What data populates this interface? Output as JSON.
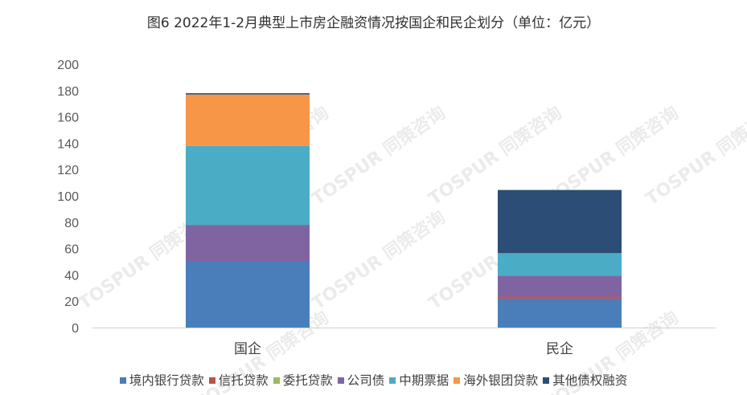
{
  "chart_data": {
    "type": "bar",
    "stacked": true,
    "title": "图6 2022年1-2月典型上市房企融资情况按国企和民企划分（单位：亿元）",
    "categories": [
      "国企",
      "民企"
    ],
    "ylim": [
      0,
      200
    ],
    "yticks": [
      0,
      20,
      40,
      60,
      80,
      100,
      120,
      140,
      160,
      180,
      200
    ],
    "grid": false,
    "legend_position": "bottom",
    "series": [
      {
        "name": "境内银行贷款",
        "color": "#4a7ebb",
        "values": [
          50,
          22
        ]
      },
      {
        "name": "信托贷款",
        "color": "#c0504d",
        "values": [
          0,
          1.5
        ]
      },
      {
        "name": "委托贷款",
        "color": "#9bbb59",
        "values": [
          0,
          0
        ]
      },
      {
        "name": "公司债",
        "color": "#8064a2",
        "values": [
          28,
          16
        ]
      },
      {
        "name": "中期票据",
        "color": "#4bacc6",
        "values": [
          60,
          17
        ]
      },
      {
        "name": "海外银团贷款",
        "color": "#f79646",
        "values": [
          39,
          0
        ]
      },
      {
        "name": "其他债权融资",
        "color": "#2c4d75",
        "values": [
          1,
          48
        ]
      }
    ]
  },
  "watermark": "TOSPUR 同策咨询"
}
